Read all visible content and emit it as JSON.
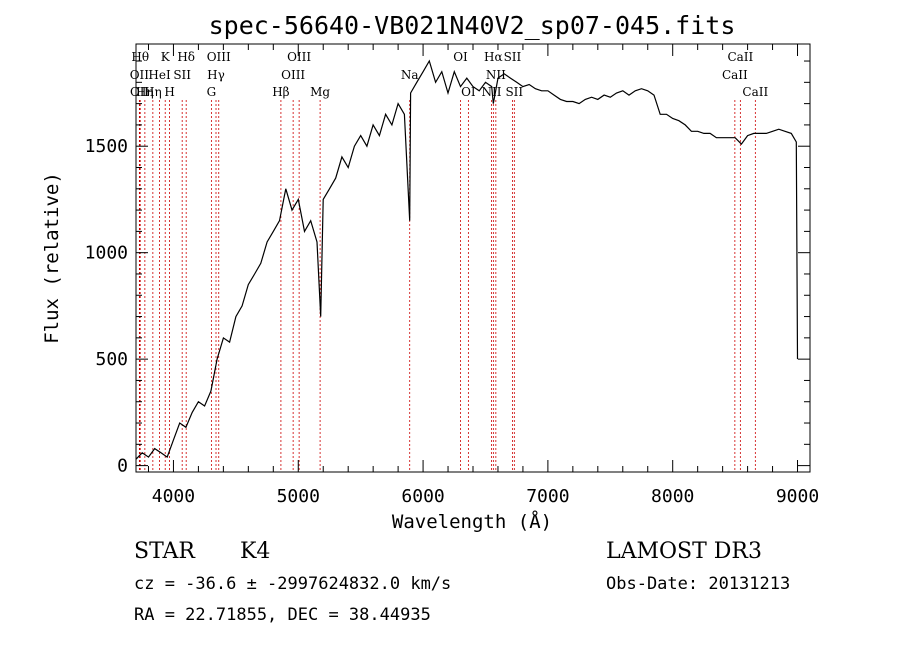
{
  "chart_data": {
    "type": "line",
    "title": "spec-56640-VB021N40V2_sp07-045.fits",
    "xlabel": "Wavelength (Å)",
    "ylabel": "Flux (relative)",
    "xlim": [
      3700,
      9100
    ],
    "ylim": [
      -30,
      1980
    ],
    "xticks": [
      4000,
      5000,
      6000,
      7000,
      8000,
      9000
    ],
    "xticks_labels": [
      "4000",
      "5000",
      "6000",
      "7000",
      "8000",
      "9000"
    ],
    "yticks": [
      0,
      500,
      1000,
      1500
    ],
    "yticks_labels": [
      "0",
      "500",
      "1000",
      "1500"
    ],
    "series": [
      {
        "name": "spectrum",
        "x": [
          3700,
          3750,
          3800,
          3850,
          3900,
          3950,
          4000,
          4050,
          4100,
          4150,
          4200,
          4250,
          4300,
          4350,
          4400,
          4450,
          4500,
          4550,
          4600,
          4650,
          4700,
          4750,
          4800,
          4850,
          4900,
          4950,
          5000,
          5050,
          5100,
          5150,
          5180,
          5200,
          5250,
          5300,
          5350,
          5400,
          5450,
          5500,
          5550,
          5600,
          5650,
          5700,
          5750,
          5800,
          5850,
          5893,
          5900,
          5950,
          6000,
          6050,
          6100,
          6150,
          6200,
          6250,
          6300,
          6350,
          6400,
          6450,
          6500,
          6550,
          6563,
          6600,
          6650,
          6700,
          6750,
          6800,
          6850,
          6900,
          6950,
          7000,
          7050,
          7100,
          7150,
          7200,
          7250,
          7300,
          7350,
          7400,
          7450,
          7500,
          7550,
          7600,
          7650,
          7700,
          7750,
          7800,
          7850,
          7900,
          7950,
          8000,
          8050,
          8100,
          8150,
          8200,
          8250,
          8300,
          8350,
          8400,
          8450,
          8500,
          8550,
          8600,
          8650,
          8700,
          8750,
          8800,
          8850,
          8900,
          8950,
          8990,
          9000
        ],
        "y": [
          30,
          60,
          40,
          80,
          60,
          40,
          120,
          200,
          180,
          250,
          300,
          280,
          350,
          500,
          600,
          580,
          700,
          750,
          850,
          900,
          950,
          1050,
          1100,
          1150,
          1300,
          1200,
          1250,
          1100,
          1150,
          1050,
          700,
          1250,
          1300,
          1350,
          1450,
          1400,
          1500,
          1550,
          1500,
          1600,
          1550,
          1650,
          1600,
          1700,
          1650,
          1150,
          1750,
          1800,
          1850,
          1900,
          1800,
          1850,
          1750,
          1850,
          1780,
          1820,
          1780,
          1760,
          1800,
          1780,
          1700,
          1820,
          1840,
          1820,
          1800,
          1780,
          1790,
          1770,
          1760,
          1760,
          1740,
          1720,
          1710,
          1710,
          1700,
          1720,
          1730,
          1720,
          1740,
          1730,
          1750,
          1760,
          1740,
          1760,
          1770,
          1760,
          1740,
          1650,
          1650,
          1630,
          1620,
          1600,
          1570,
          1570,
          1560,
          1560,
          1540,
          1540,
          1540,
          1540,
          1510,
          1550,
          1560,
          1560,
          1560,
          1570,
          1580,
          1570,
          1560,
          1520,
          500
        ]
      }
    ],
    "line_markers": [
      {
        "wavelength": 3734,
        "labels": [
          "Hθ"
        ],
        "row": 0
      },
      {
        "wavelength": 3727,
        "labels": [
          "OII"
        ],
        "row": 1
      },
      {
        "wavelength": 3729,
        "labels": [
          "OII"
        ],
        "row": 2
      },
      {
        "wavelength": 3771,
        "labels": [
          "Hη"
        ],
        "row": 2
      },
      {
        "wavelength": 3835,
        "labels": [
          "Hη"
        ],
        "row": 2
      },
      {
        "wavelength": 3889,
        "labels": [
          "HeI"
        ],
        "row": 1
      },
      {
        "wavelength": 3934,
        "labels": [
          "K"
        ],
        "row": 0
      },
      {
        "wavelength": 3969,
        "labels": [
          "H"
        ],
        "row": 2
      },
      {
        "wavelength": 4070,
        "labels": [
          "SII"
        ],
        "row": 1
      },
      {
        "wavelength": 4102,
        "labels": [
          "Hδ"
        ],
        "row": 0
      },
      {
        "wavelength": 4304,
        "labels": [
          "G"
        ],
        "row": 2
      },
      {
        "wavelength": 4341,
        "labels": [
          "Hγ"
        ],
        "row": 1
      },
      {
        "wavelength": 4363,
        "labels": [
          "OIII"
        ],
        "row": 0
      },
      {
        "wavelength": 4861,
        "labels": [
          "Hβ"
        ],
        "row": 2
      },
      {
        "wavelength": 4959,
        "labels": [
          "OIII"
        ],
        "row": 1
      },
      {
        "wavelength": 5007,
        "labels": [
          "OIII"
        ],
        "row": 0
      },
      {
        "wavelength": 5175,
        "labels": [
          "Mg"
        ],
        "row": 2
      },
      {
        "wavelength": 5893,
        "labels": [
          "Na"
        ],
        "row": 1
      },
      {
        "wavelength": 6300,
        "labels": [
          "OI"
        ],
        "row": 0
      },
      {
        "wavelength": 6363,
        "labels": [
          "OI"
        ],
        "row": 2
      },
      {
        "wavelength": 6548,
        "labels": [
          "NII"
        ],
        "row": 2
      },
      {
        "wavelength": 6563,
        "labels": [
          "Hα"
        ],
        "row": 0
      },
      {
        "wavelength": 6583,
        "labels": [
          "NII"
        ],
        "row": 1
      },
      {
        "wavelength": 6716,
        "labels": [
          "SII"
        ],
        "row": 0
      },
      {
        "wavelength": 6731,
        "labels": [
          "SII"
        ],
        "row": 2
      },
      {
        "wavelength": 8498,
        "labels": [
          "CaII"
        ],
        "row": 1
      },
      {
        "wavelength": 8542,
        "labels": [
          "CaII"
        ],
        "row": 0
      },
      {
        "wavelength": 8662,
        "labels": [
          "CaII"
        ],
        "row": 2
      }
    ]
  },
  "info": {
    "class": "STAR",
    "subclass": "K4",
    "survey": "LAMOST DR3",
    "cz": "cz = -36.6 ± -2997624832.0 km/s",
    "obs_date": "Obs-Date: 20131213",
    "radec": "RA =  22.71855, DEC =  38.44935"
  },
  "colors": {
    "spectrum": "#000000",
    "markers": "#cc0000",
    "axes": "#000000"
  }
}
